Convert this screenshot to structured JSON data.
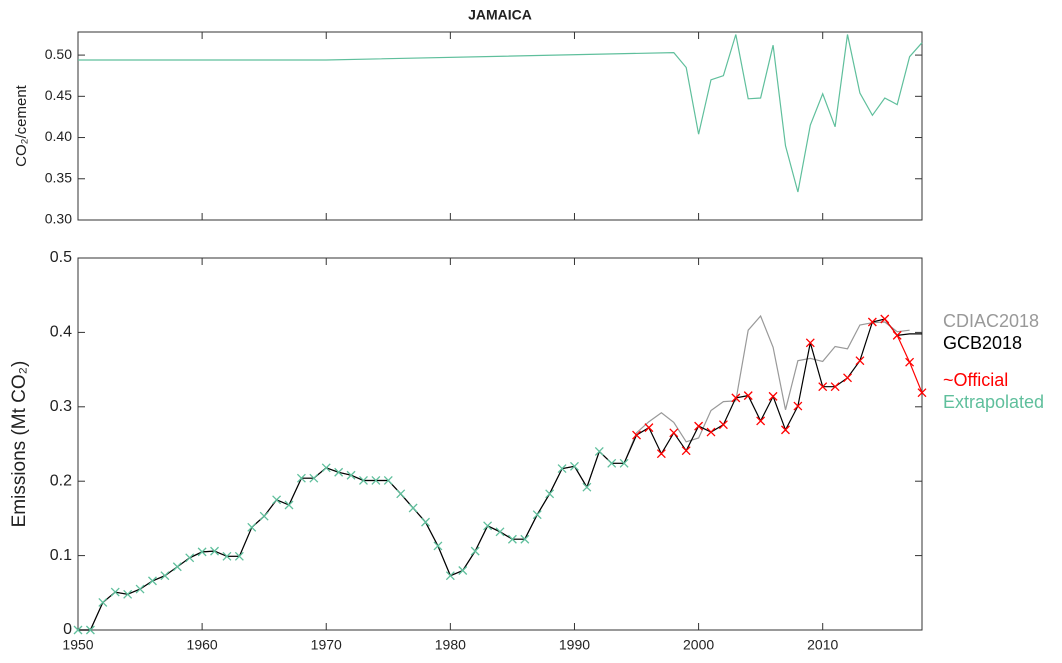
{
  "chart_data": [
    {
      "type": "line",
      "title": "JAMAICA",
      "ylabel": "CO₂/cement",
      "x": [
        1950,
        1970,
        1998,
        1999,
        2000,
        2001,
        2002,
        2003,
        2004,
        2005,
        2006,
        2007,
        2008,
        2009,
        2010,
        2011,
        2012,
        2013,
        2014,
        2015,
        2016,
        2017,
        2018
      ],
      "series": [
        {
          "color": "#5fbf9c",
          "style": "line",
          "values": [
            0.494,
            0.494,
            0.503,
            0.485,
            0.404,
            0.47,
            0.475,
            0.525,
            0.447,
            0.448,
            0.512,
            0.39,
            0.334,
            0.415,
            0.453,
            0.413,
            0.525,
            0.454,
            0.427,
            0.448,
            0.44,
            0.498,
            0.515
          ]
        }
      ],
      "xlim": [
        1950,
        2018
      ],
      "xticks": [
        1950,
        1960,
        1970,
        1980,
        1990,
        2000,
        2010
      ],
      "ylim": [
        0.3,
        0.528
      ],
      "yticks": [
        {
          "value": 0.3,
          "label": "0.30"
        },
        {
          "value": 0.35,
          "label": "0.35"
        },
        {
          "value": 0.4,
          "label": "0.40"
        },
        {
          "value": 0.45,
          "label": "0.45"
        },
        {
          "value": 0.5,
          "label": "0.50"
        }
      ]
    },
    {
      "type": "line",
      "ylabel": "Emissions (Mt CO₂)",
      "legend": "right",
      "x": [
        1950,
        1951,
        1952,
        1953,
        1954,
        1955,
        1956,
        1957,
        1958,
        1959,
        1960,
        1961,
        1962,
        1963,
        1964,
        1965,
        1966,
        1967,
        1968,
        1969,
        1970,
        1971,
        1972,
        1973,
        1974,
        1975,
        1976,
        1977,
        1978,
        1979,
        1980,
        1981,
        1982,
        1983,
        1984,
        1985,
        1986,
        1987,
        1988,
        1989,
        1990,
        1991,
        1992,
        1993,
        1994,
        1995,
        1996,
        1997,
        1998,
        1999,
        2000,
        2001,
        2002,
        2003,
        2004,
        2005,
        2006,
        2007,
        2008,
        2009,
        2010,
        2011,
        2012,
        2013,
        2014,
        2015,
        2016,
        2017,
        2018
      ],
      "series": [
        {
          "name": "CDIAC2018",
          "color": "#999999",
          "style": "line",
          "values": [
            0,
            0,
            0.037,
            0.051,
            0.048,
            0.055,
            0.066,
            0.073,
            0.085,
            0.097,
            0.105,
            0.106,
            0.099,
            0.099,
            0.138,
            0.153,
            0.175,
            0.168,
            0.204,
            0.204,
            0.218,
            0.212,
            0.208,
            0.201,
            0.201,
            0.201,
            0.183,
            0.164,
            0.145,
            0.113,
            0.073,
            0.08,
            0.106,
            0.14,
            0.132,
            0.122,
            0.122,
            0.155,
            0.183,
            0.217,
            0.22,
            0.192,
            0.24,
            0.224,
            0.224,
            0.265,
            0.28,
            0.292,
            0.279,
            0.253,
            0.258,
            0.295,
            0.307,
            0.308,
            0.403,
            0.422,
            0.38,
            0.296,
            0.362,
            0.365,
            0.361,
            0.381,
            0.378,
            0.41,
            0.413,
            0.414,
            0.401,
            0.403,
            null
          ]
        },
        {
          "name": "GCB2018",
          "color": "#000000",
          "style": "line",
          "values": [
            0,
            0,
            0.037,
            0.051,
            0.048,
            0.055,
            0.066,
            0.073,
            0.085,
            0.097,
            0.105,
            0.106,
            0.099,
            0.099,
            0.138,
            0.153,
            0.175,
            0.168,
            0.204,
            0.204,
            0.218,
            0.212,
            0.208,
            0.201,
            0.201,
            0.201,
            0.183,
            0.164,
            0.145,
            0.113,
            0.073,
            0.08,
            0.106,
            0.14,
            0.132,
            0.122,
            0.122,
            0.155,
            0.183,
            0.217,
            0.22,
            0.192,
            0.24,
            0.224,
            0.224,
            0.262,
            0.272,
            0.237,
            0.265,
            0.241,
            0.274,
            0.266,
            0.276,
            0.312,
            0.315,
            0.281,
            0.314,
            0.269,
            0.301,
            0.386,
            0.327,
            0.327,
            0.339,
            0.362,
            0.414,
            0.418,
            0.396,
            0.398,
            0.398
          ]
        },
        {
          "color": "#ff0000",
          "style": "line",
          "values": [
            null,
            null,
            null,
            null,
            null,
            null,
            null,
            null,
            null,
            null,
            null,
            null,
            null,
            null,
            null,
            null,
            null,
            null,
            null,
            null,
            null,
            null,
            null,
            null,
            null,
            null,
            null,
            null,
            null,
            null,
            null,
            null,
            null,
            null,
            null,
            null,
            null,
            null,
            null,
            null,
            null,
            null,
            null,
            null,
            null,
            null,
            null,
            null,
            null,
            null,
            null,
            null,
            null,
            null,
            null,
            null,
            null,
            null,
            null,
            null,
            null,
            null,
            null,
            null,
            null,
            0.418,
            0.396,
            0.36,
            0.319
          ]
        },
        {
          "name": "~Official",
          "color": "#ff0000",
          "style": "marker",
          "values": [
            null,
            null,
            null,
            null,
            null,
            null,
            null,
            null,
            null,
            null,
            null,
            null,
            null,
            null,
            null,
            null,
            null,
            null,
            null,
            null,
            null,
            null,
            null,
            null,
            null,
            null,
            null,
            null,
            null,
            null,
            null,
            null,
            null,
            null,
            null,
            null,
            null,
            null,
            null,
            null,
            null,
            null,
            null,
            null,
            null,
            0.262,
            0.272,
            0.237,
            0.265,
            0.241,
            0.274,
            0.266,
            0.276,
            0.312,
            0.315,
            0.281,
            0.314,
            0.269,
            0.301,
            0.386,
            0.327,
            0.327,
            0.339,
            0.362,
            0.414,
            0.418,
            0.396,
            0.36,
            0.319
          ]
        },
        {
          "name": "Extrapolated",
          "color": "#5fbf9c",
          "style": "marker",
          "values": [
            0,
            0,
            0.037,
            0.051,
            0.048,
            0.055,
            0.066,
            0.073,
            0.085,
            0.097,
            0.105,
            0.106,
            0.099,
            0.099,
            0.138,
            0.153,
            0.175,
            0.168,
            0.204,
            0.204,
            0.218,
            0.212,
            0.208,
            0.201,
            0.201,
            0.201,
            0.183,
            0.164,
            0.145,
            0.113,
            0.073,
            0.08,
            0.106,
            0.14,
            0.132,
            0.122,
            0.122,
            0.155,
            0.183,
            0.217,
            0.22,
            0.192,
            0.24,
            0.224,
            0.224,
            null,
            null,
            null,
            null,
            null,
            null,
            null,
            null,
            null,
            null,
            null,
            null,
            null,
            null,
            null,
            null,
            null,
            null,
            null,
            null,
            null,
            null,
            null,
            null
          ]
        }
      ],
      "xlim": [
        1950,
        2018
      ],
      "xticks": [
        1950,
        1960,
        1970,
        1980,
        1990,
        2000,
        2010
      ],
      "ylim": [
        0,
        0.5
      ],
      "yticks": [
        0,
        0.1,
        0.2,
        0.3,
        0.4,
        0.5
      ]
    }
  ]
}
